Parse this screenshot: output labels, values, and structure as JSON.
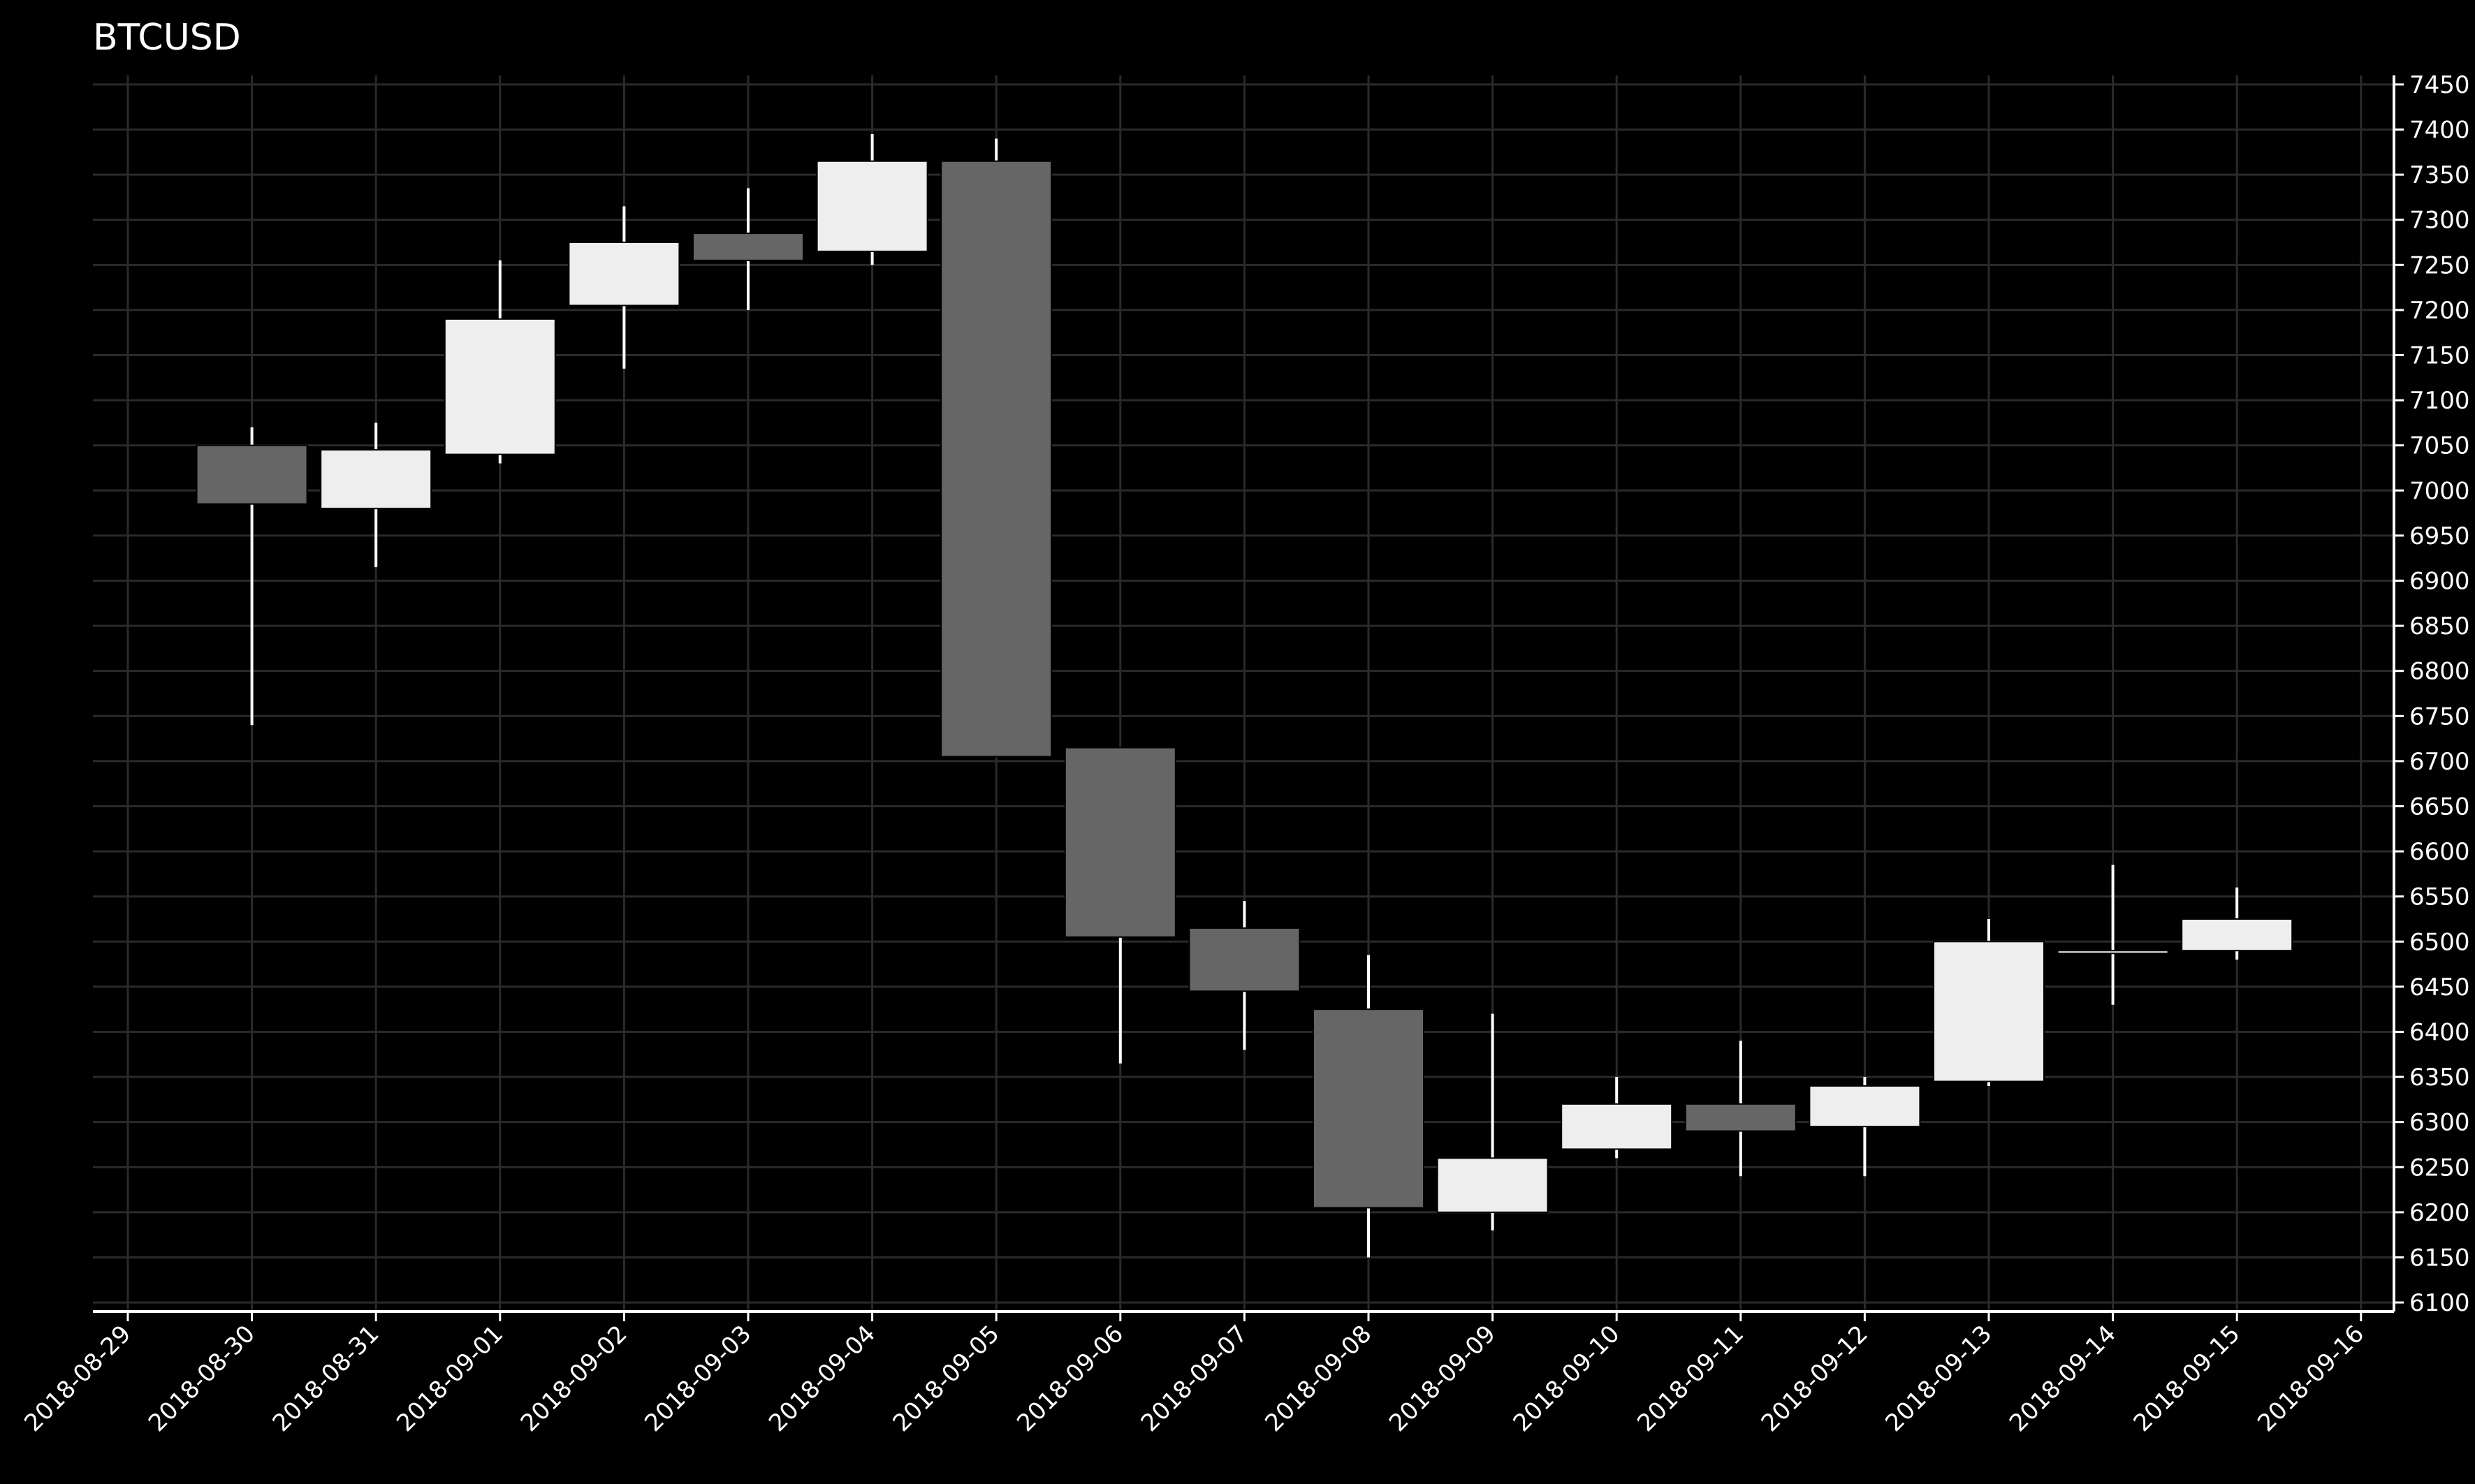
{
  "chart_data": {
    "type": "candlestick",
    "title": "BTCUSD",
    "xlabel": "",
    "ylabel": "",
    "x_ticks": [
      "2018-08-29",
      "2018-08-30",
      "2018-08-31",
      "2018-09-01",
      "2018-09-02",
      "2018-09-03",
      "2018-09-04",
      "2018-09-05",
      "2018-09-06",
      "2018-09-07",
      "2018-09-08",
      "2018-09-09",
      "2018-09-10",
      "2018-09-11",
      "2018-09-12",
      "2018-09-13",
      "2018-09-14",
      "2018-09-15",
      "2018-09-16"
    ],
    "y_ticks": [
      6100,
      6150,
      6200,
      6250,
      6300,
      6350,
      6400,
      6450,
      6500,
      6550,
      6600,
      6650,
      6700,
      6750,
      6800,
      6850,
      6900,
      6950,
      7000,
      7050,
      7100,
      7150,
      7200,
      7250,
      7300,
      7350,
      7400,
      7450
    ],
    "ylim": [
      6090,
      7460
    ],
    "y_axis_side": "right",
    "grid": true,
    "colors": {
      "background": "#000000",
      "grid": "#2a2a2a",
      "axis": "#ffffff",
      "up": "#eeeeee",
      "down": "#666666",
      "wick": "#ffffff",
      "text": "#ffffff"
    },
    "candles": [
      {
        "date": "2018-08-30",
        "open": 7050,
        "high": 7070,
        "low": 6740,
        "close": 6985
      },
      {
        "date": "2018-08-31",
        "open": 6980,
        "high": 7075,
        "low": 6915,
        "close": 7045
      },
      {
        "date": "2018-09-01",
        "open": 7040,
        "high": 7255,
        "low": 7030,
        "close": 7190
      },
      {
        "date": "2018-09-02",
        "open": 7205,
        "high": 7315,
        "low": 7135,
        "close": 7275
      },
      {
        "date": "2018-09-03",
        "open": 7285,
        "high": 7335,
        "low": 7200,
        "close": 7255
      },
      {
        "date": "2018-09-04",
        "open": 7265,
        "high": 7395,
        "low": 7250,
        "close": 7365
      },
      {
        "date": "2018-09-05",
        "open": 7365,
        "high": 7390,
        "low": 6705,
        "close": 6705
      },
      {
        "date": "2018-09-06",
        "open": 6715,
        "high": 6715,
        "low": 6365,
        "close": 6505
      },
      {
        "date": "2018-09-07",
        "open": 6515,
        "high": 6545,
        "low": 6380,
        "close": 6445
      },
      {
        "date": "2018-09-08",
        "open": 6425,
        "high": 6485,
        "low": 6150,
        "close": 6205
      },
      {
        "date": "2018-09-09",
        "open": 6200,
        "high": 6420,
        "low": 6180,
        "close": 6260
      },
      {
        "date": "2018-09-10",
        "open": 6270,
        "high": 6350,
        "low": 6260,
        "close": 6320
      },
      {
        "date": "2018-09-11",
        "open": 6320,
        "high": 6390,
        "low": 6240,
        "close": 6290
      },
      {
        "date": "2018-09-12",
        "open": 6295,
        "high": 6350,
        "low": 6240,
        "close": 6340
      },
      {
        "date": "2018-09-13",
        "open": 6345,
        "high": 6525,
        "low": 6340,
        "close": 6500
      },
      {
        "date": "2018-09-14",
        "open": 6490,
        "high": 6585,
        "low": 6430,
        "close": 6490
      },
      {
        "date": "2018-09-15",
        "open": 6490,
        "high": 6560,
        "low": 6480,
        "close": 6525
      }
    ]
  }
}
